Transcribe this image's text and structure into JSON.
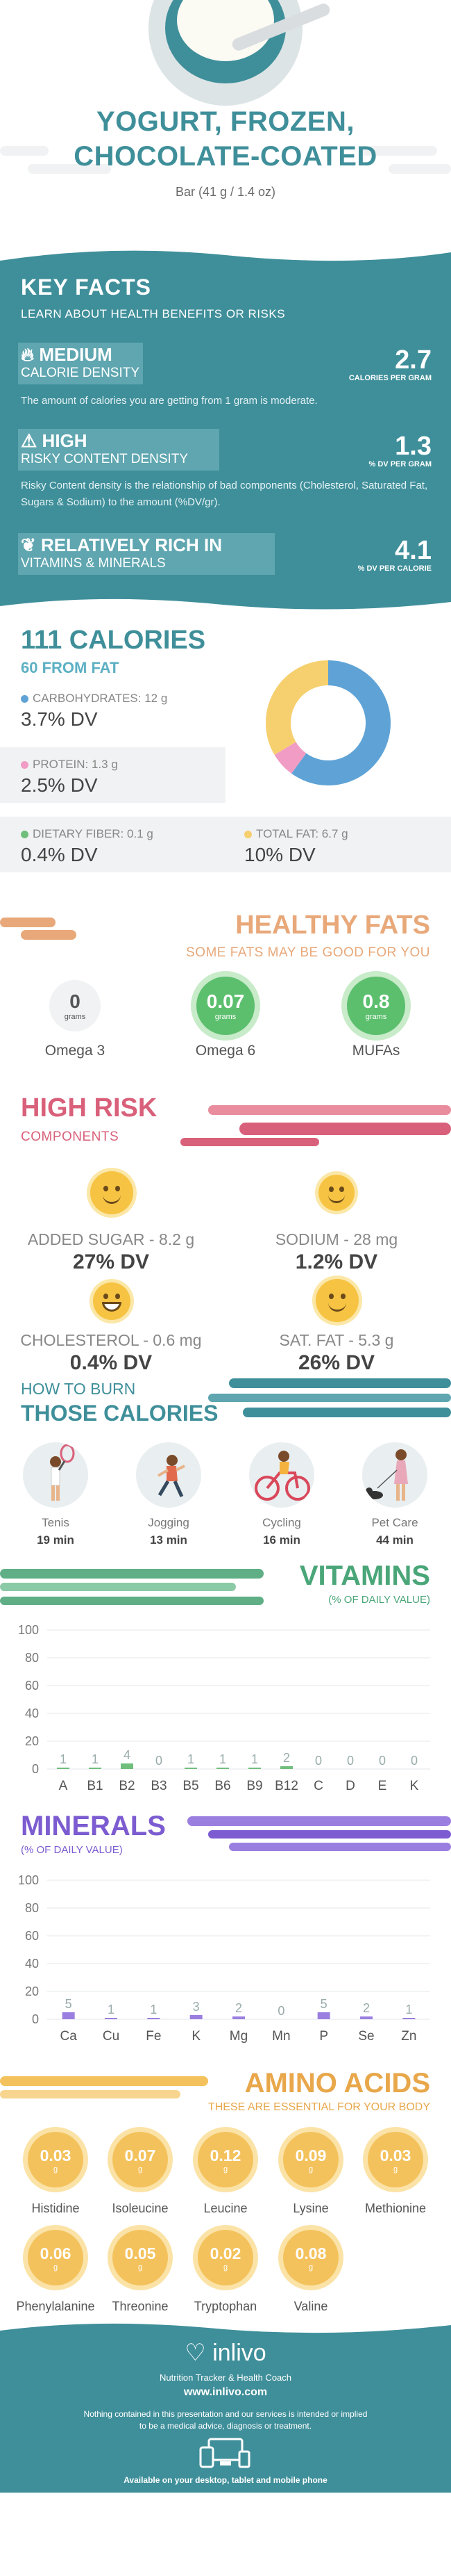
{
  "hero": {
    "title_line1": "YOGURT, FROZEN,",
    "title_line2": "CHOCOLATE-COATED",
    "serving": "Bar (41 g / 1.4 oz)"
  },
  "key_facts": {
    "title": "KEY FACTS",
    "subtitle": "LEARN ABOUT HEALTH BENEFITS OR RISKS",
    "calorie_density": {
      "level": "MEDIUM",
      "label": "CALORIE DENSITY",
      "value": "2.7",
      "unit": "CALORIES PER GRAM",
      "desc": "The amount of calories you are getting from 1 gram is moderate."
    },
    "risky_content": {
      "level": "HIGH",
      "label": "RISKY CONTENT DENSITY",
      "value": "1.3",
      "unit": "% DV PER GRAM",
      "desc": "Risky Content density is the relationship of bad components (Cholesterol, Saturated Fat, Sugars & Sodium) to the amount (%DV/gr)."
    },
    "vitamins_minerals": {
      "level": "RELATIVELY RICH  IN",
      "label": "VITAMINS & MINERALS",
      "value": "4.1",
      "unit": "% DV PER CALORIE"
    }
  },
  "calories": {
    "title": "111 CALORIES",
    "from_fat": "60 FROM FAT",
    "carbs": {
      "label": "CARBOHYDRATES: 12 g",
      "dv": "3.7% DV",
      "color": "#5fa3d6"
    },
    "protein": {
      "label": "PROTEIN: 1.3 g",
      "dv": "2.5% DV",
      "color": "#f19cc4"
    },
    "fiber": {
      "label": "DIETARY FIBER: 0.1 g",
      "dv": "0.4% DV",
      "color": "#6fbe7c"
    },
    "fat": {
      "label": "TOTAL FAT: 6.7 g",
      "dv": "10% DV",
      "color": "#f6cf6e"
    },
    "donut": [
      {
        "name": "carbs",
        "value": 12,
        "color": "#5fa3d6"
      },
      {
        "name": "protein",
        "value": 1.3,
        "color": "#f19cc4"
      },
      {
        "name": "fat",
        "value": 6.7,
        "color": "#f6cf6e"
      }
    ]
  },
  "fats": {
    "title": "HEALTHY FATS",
    "subtitle": "SOME FATS MAY BE GOOD FOR YOU",
    "items": [
      {
        "value": "0",
        "unit": "grams",
        "label": "Omega 3"
      },
      {
        "value": "0.07",
        "unit": "grams",
        "label": "Omega 6"
      },
      {
        "value": "0.8",
        "unit": "grams",
        "label": "MUFAs"
      }
    ]
  },
  "risk": {
    "title": "HIGH RISK",
    "subtitle": "COMPONENTS",
    "items": [
      {
        "label": "ADDED SUGAR - 8.2 g",
        "dv": "27% DV"
      },
      {
        "label": "SODIUM - 28 mg",
        "dv": "1.2% DV"
      },
      {
        "label": "CHOLESTEROL - 0.6 mg",
        "dv": "0.4% DV"
      },
      {
        "label": "SAT. FAT - 5.3 g",
        "dv": "26% DV"
      }
    ]
  },
  "burn": {
    "title1": "HOW TO BURN",
    "title2": "THOSE CALORIES",
    "items": [
      {
        "name": "Tenis",
        "time": "19 min",
        "icon": "tennis-icon"
      },
      {
        "name": "Jogging",
        "time": "13 min",
        "icon": "jogging-icon"
      },
      {
        "name": "Cycling",
        "time": "16 min",
        "icon": "cycling-icon"
      },
      {
        "name": "Pet Care",
        "time": "44 min",
        "icon": "pet-care-icon"
      }
    ]
  },
  "vitamins": {
    "title": "VITAMINS",
    "subtitle": "(% OF DAILY VALUE)",
    "chart_data": {
      "type": "bar",
      "categories": [
        "A",
        "B1",
        "B2",
        "B3",
        "B5",
        "B6",
        "B9",
        "B12",
        "C",
        "D",
        "E",
        "K"
      ],
      "values": [
        1,
        1,
        4,
        0,
        1,
        1,
        1,
        2,
        0,
        0,
        0,
        0
      ],
      "value_labels": [
        "1",
        "1",
        "4",
        "0",
        "1",
        "1",
        "1",
        "2",
        "0",
        "0",
        "0",
        "0"
      ],
      "ylim": [
        0,
        100
      ],
      "yticks": [
        "0",
        "20",
        "40",
        "60",
        "80",
        "100"
      ],
      "color": "#6fbe7c"
    }
  },
  "minerals": {
    "title": "MINERALS",
    "subtitle": "(% OF DAILY VALUE)",
    "chart_data": {
      "type": "bar",
      "categories": [
        "Ca",
        "Cu",
        "Fe",
        "K",
        "Mg",
        "Mn",
        "P",
        "Se",
        "Zn"
      ],
      "values": [
        5,
        1,
        1,
        3,
        2,
        0,
        5,
        2,
        1
      ],
      "value_labels": [
        "5",
        "1",
        "1",
        "3",
        "2",
        "0",
        "5",
        "2",
        "1"
      ],
      "ylim": [
        0,
        100
      ],
      "yticks": [
        "0",
        "20",
        "40",
        "60",
        "80",
        "100"
      ],
      "color": "#9b7fe0"
    }
  },
  "amino": {
    "title": "AMINO ACIDS",
    "subtitle": "THESE ARE ESSENTIAL FOR YOUR BODY",
    "items": [
      {
        "value": "0.03",
        "unit": "g",
        "label": "Histidine"
      },
      {
        "value": "0.07",
        "unit": "g",
        "label": "Isoleucine"
      },
      {
        "value": "0.12",
        "unit": "g",
        "label": "Leucine"
      },
      {
        "value": "0.09",
        "unit": "g",
        "label": "Lysine"
      },
      {
        "value": "0.03",
        "unit": "g",
        "label": "Methionine"
      },
      {
        "value": "0.06",
        "unit": "g",
        "label": "Phenylalanine"
      },
      {
        "value": "0.05",
        "unit": "g",
        "label": "Threonine"
      },
      {
        "value": "0.02",
        "unit": "g",
        "label": "Tryptophan"
      },
      {
        "value": "0.08",
        "unit": "g",
        "label": "Valine"
      }
    ]
  },
  "footer": {
    "brand": "inlivo",
    "tagline": "Nutrition Tracker & Health Coach",
    "url": "www.inlivo.com",
    "disclaimer_line1": "Nothing contained in this presentation and our services is intended or implied",
    "disclaimer_line2": "to be a medical advice, diagnosis or treatment.",
    "devices": "Available on your desktop, tablet and mobile phone"
  }
}
